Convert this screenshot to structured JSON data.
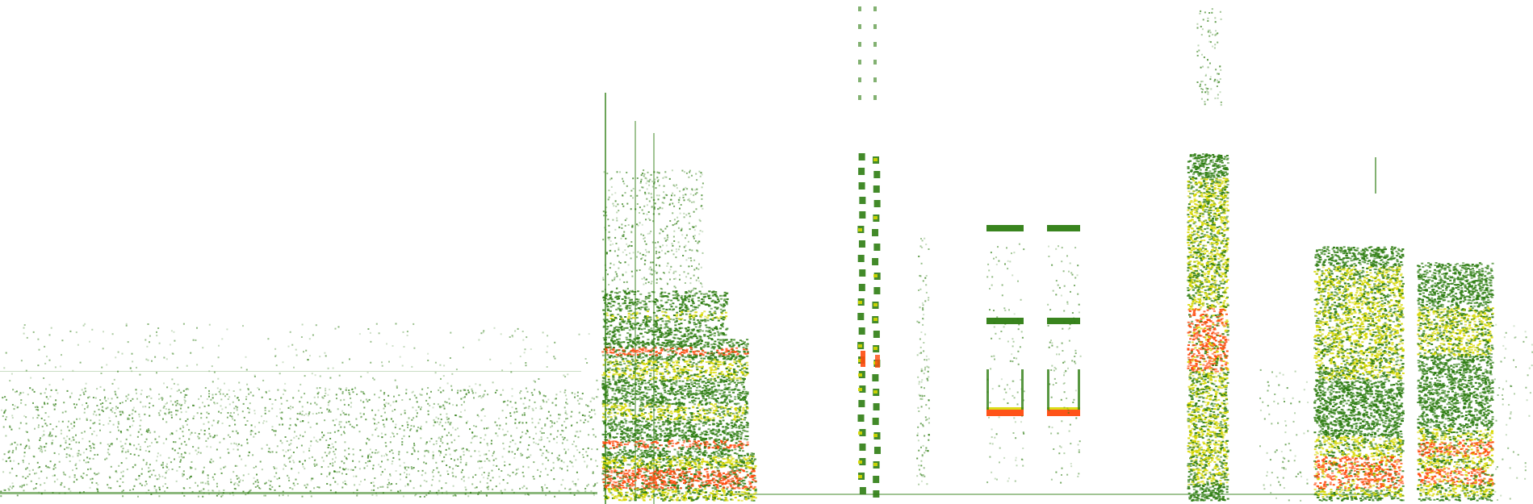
{
  "image": {
    "kind": "spectrogram",
    "background": "#ffffff",
    "palette": {
      "low": "#2e7d12",
      "mid": "#d7d800",
      "high": "#ff4a0d"
    }
  }
}
